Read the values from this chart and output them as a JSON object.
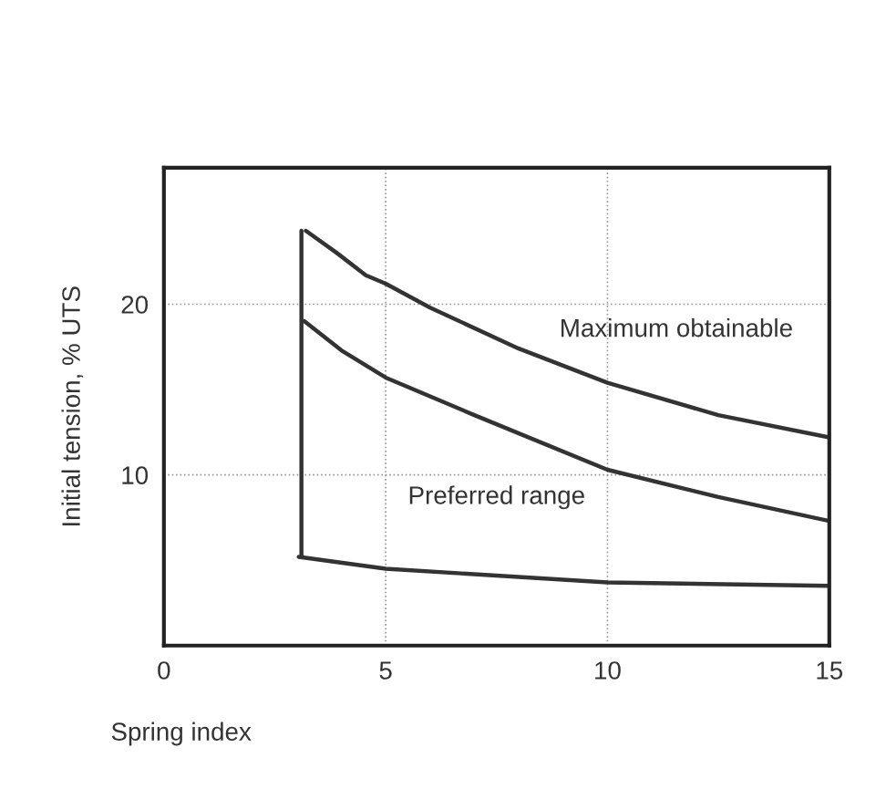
{
  "chart_data": {
    "type": "line",
    "xlabel": "Spring index",
    "ylabel": "Initial tension, % UTS",
    "series": [
      {
        "color": "#333333",
        "x": [
          3.2,
          3.9,
          4.55,
          5,
          6,
          8,
          10,
          12.5,
          15
        ],
        "values": [
          24.3,
          23.0,
          21.7,
          21.2,
          19.8,
          17.4,
          15.4,
          13.5,
          12.2
        ]
      },
      {
        "color": "#333333",
        "x": [
          3.17,
          4,
          5,
          7,
          10,
          12.5,
          15
        ],
        "values": [
          19.0,
          17.3,
          15.7,
          13.5,
          10.3,
          8.7,
          7.3
        ]
      },
      {
        "color": "#333333",
        "x": [
          3.04,
          5,
          10,
          15
        ],
        "values": [
          5.2,
          4.5,
          3.7,
          3.5
        ]
      },
      {
        "color": "#333333",
        "x": [
          3.1,
          3.1
        ],
        "values": [
          24.3,
          5.2
        ]
      }
    ],
    "xlim": [
      0,
      15
    ],
    "ylim": [
      0,
      28
    ],
    "xticks": [
      0,
      5,
      10,
      15
    ],
    "yticks": [
      10,
      20
    ],
    "grid": true,
    "annotations": [
      "Maximum obtainable",
      "Preferred range"
    ]
  }
}
